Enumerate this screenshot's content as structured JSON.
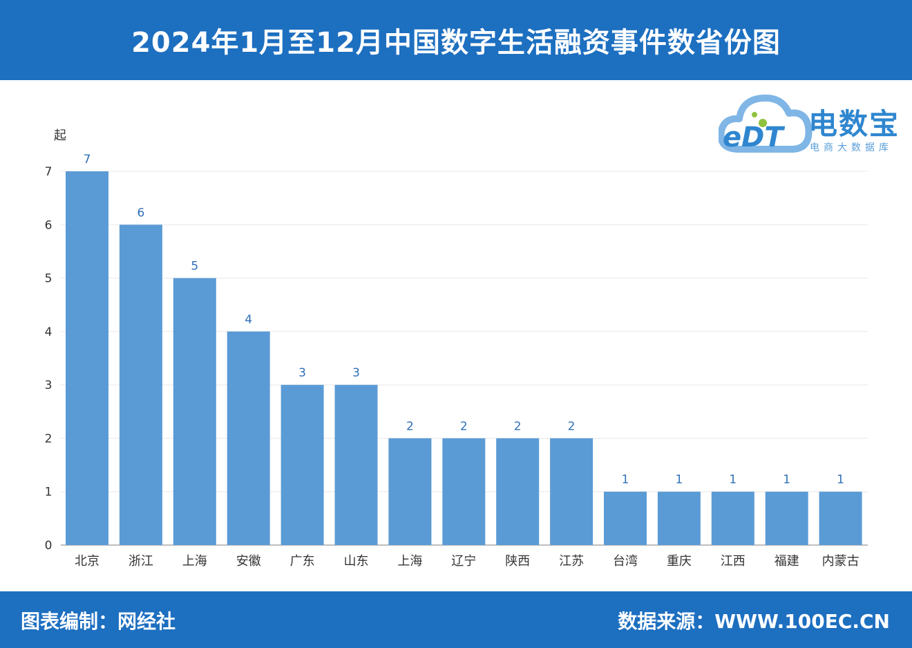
{
  "header": {
    "title": "2024年1月至12月中国数字生活融资事件数省份图"
  },
  "logo": {
    "brand": "电数宝",
    "mark": "eDT",
    "subtitle": "电商大数据库"
  },
  "footer": {
    "left": "图表编制：网经社",
    "right": "数据来源：WWW.100EC.CN"
  },
  "colors": {
    "header": "#1d6fc0",
    "bar": "#5b9bd5",
    "label": "#2f6fb5"
  },
  "chart_data": {
    "type": "bar",
    "ylabel": "起",
    "xlabel": "",
    "ylim": [
      0,
      7
    ],
    "yticks": [
      0,
      1,
      2,
      3,
      4,
      5,
      6,
      7
    ],
    "grid": true,
    "categories": [
      "北京",
      "浙江",
      "上海",
      "安徽",
      "广东",
      "山东",
      "上海",
      "辽宁",
      "陕西",
      "江苏",
      "台湾",
      "重庆",
      "江西",
      "福建",
      "内蒙古"
    ],
    "values": [
      7,
      6,
      5,
      4,
      3,
      3,
      2,
      2,
      2,
      2,
      1,
      1,
      1,
      1,
      1
    ]
  }
}
